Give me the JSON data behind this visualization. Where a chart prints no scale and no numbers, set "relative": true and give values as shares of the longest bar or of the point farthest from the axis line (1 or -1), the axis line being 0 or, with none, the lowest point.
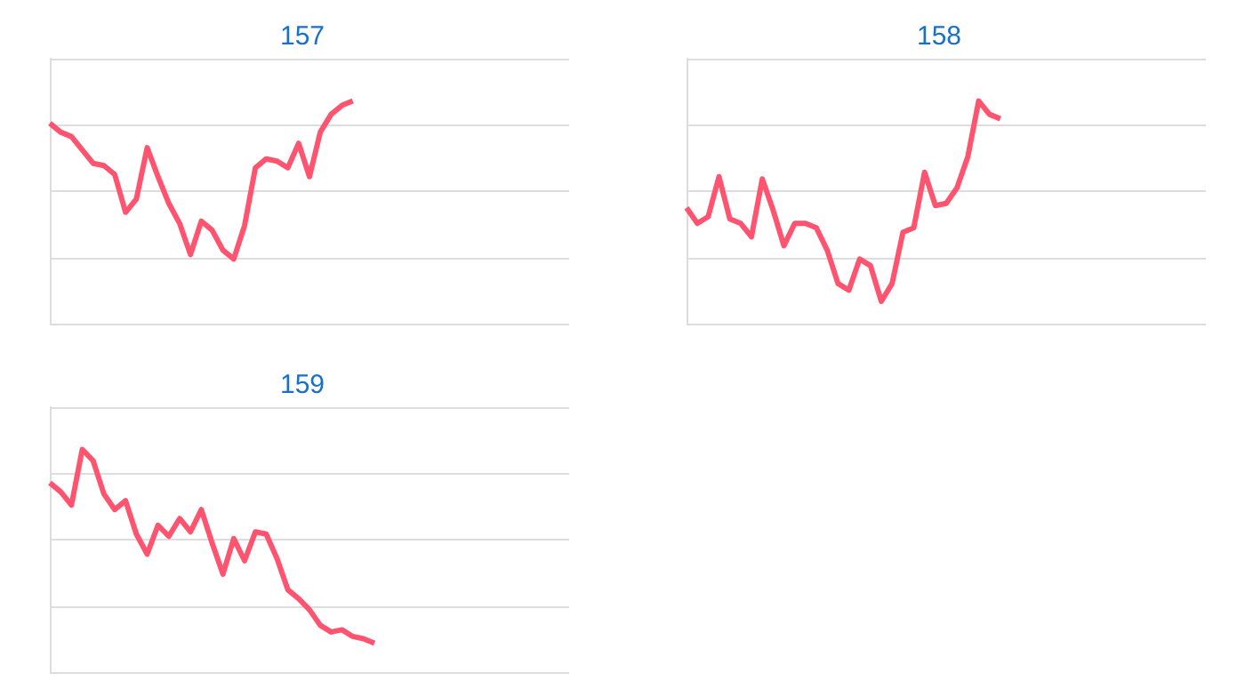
{
  "chart_data": [
    {
      "type": "line",
      "title": "157",
      "relative": true,
      "grid": "y",
      "categories": [
        null,
        null,
        null,
        null,
        null,
        null,
        null,
        null,
        null,
        null,
        null,
        null,
        null,
        null,
        null,
        null,
        null,
        null,
        null,
        null,
        null,
        null,
        null,
        null,
        null,
        null,
        null,
        null,
        null,
        null,
        null,
        null,
        null,
        null,
        null,
        null,
        null,
        null,
        null,
        null,
        null,
        null,
        null,
        null,
        null,
        null,
        null,
        null,
        null
      ],
      "series": [
        {
          "color": "#ff5470",
          "values": [
            0.9,
            0.86,
            0.84,
            0.78,
            0.72,
            0.71,
            0.67,
            0.5,
            0.56,
            0.79,
            0.66,
            0.54,
            0.45,
            0.31,
            0.46,
            0.42,
            0.33,
            0.29,
            0.44,
            0.7,
            0.74,
            0.73,
            0.7,
            0.81,
            0.66,
            0.86,
            0.94,
            0.98,
            1.0,
            null,
            null,
            null,
            null,
            null,
            null,
            null,
            null,
            null,
            null,
            null,
            null,
            null,
            null,
            null,
            null,
            null,
            null,
            null,
            null
          ]
        }
      ]
    },
    {
      "type": "line",
      "title": "158",
      "relative": true,
      "grid": "y",
      "categories": [
        null,
        null,
        null,
        null,
        null,
        null,
        null,
        null,
        null,
        null,
        null,
        null,
        null,
        null,
        null,
        null,
        null,
        null,
        null,
        null,
        null,
        null,
        null,
        null,
        null,
        null,
        null,
        null,
        null,
        null,
        null,
        null,
        null,
        null,
        null,
        null,
        null,
        null,
        null,
        null,
        null,
        null,
        null,
        null,
        null,
        null,
        null,
        null,
        null
      ],
      "series": [
        {
          "color": "#ff5470",
          "values": [
            0.52,
            0.45,
            0.48,
            0.66,
            0.47,
            0.45,
            0.39,
            0.65,
            0.51,
            0.35,
            0.45,
            0.45,
            0.43,
            0.33,
            0.18,
            0.15,
            0.29,
            0.26,
            0.1,
            0.18,
            0.41,
            0.43,
            0.68,
            0.53,
            0.54,
            0.61,
            0.75,
            1.0,
            0.94,
            0.92,
            null,
            null,
            null,
            null,
            null,
            null,
            null,
            null,
            null,
            null,
            null,
            null,
            null,
            null,
            null,
            null,
            null,
            null,
            null
          ]
        }
      ]
    },
    {
      "type": "line",
      "title": "159",
      "relative": true,
      "grid": "y",
      "categories": [
        null,
        null,
        null,
        null,
        null,
        null,
        null,
        null,
        null,
        null,
        null,
        null,
        null,
        null,
        null,
        null,
        null,
        null,
        null,
        null,
        null,
        null,
        null,
        null,
        null,
        null,
        null,
        null,
        null,
        null,
        null,
        null,
        null,
        null,
        null,
        null,
        null,
        null,
        null,
        null,
        null,
        null,
        null,
        null,
        null,
        null,
        null,
        null,
        null
      ],
      "series": [
        {
          "color": "#ff5470",
          "values": [
            0.85,
            0.81,
            0.75,
            1.0,
            0.95,
            0.8,
            0.73,
            0.77,
            0.62,
            0.53,
            0.66,
            0.61,
            0.69,
            0.63,
            0.73,
            0.58,
            0.44,
            0.6,
            0.5,
            0.63,
            0.62,
            0.51,
            0.37,
            0.33,
            0.28,
            0.21,
            0.18,
            0.19,
            0.16,
            0.15,
            0.13,
            null,
            null,
            null,
            null,
            null,
            null,
            null,
            null,
            null,
            null,
            null,
            null,
            null,
            null,
            null,
            null,
            null,
            null
          ]
        }
      ]
    }
  ]
}
